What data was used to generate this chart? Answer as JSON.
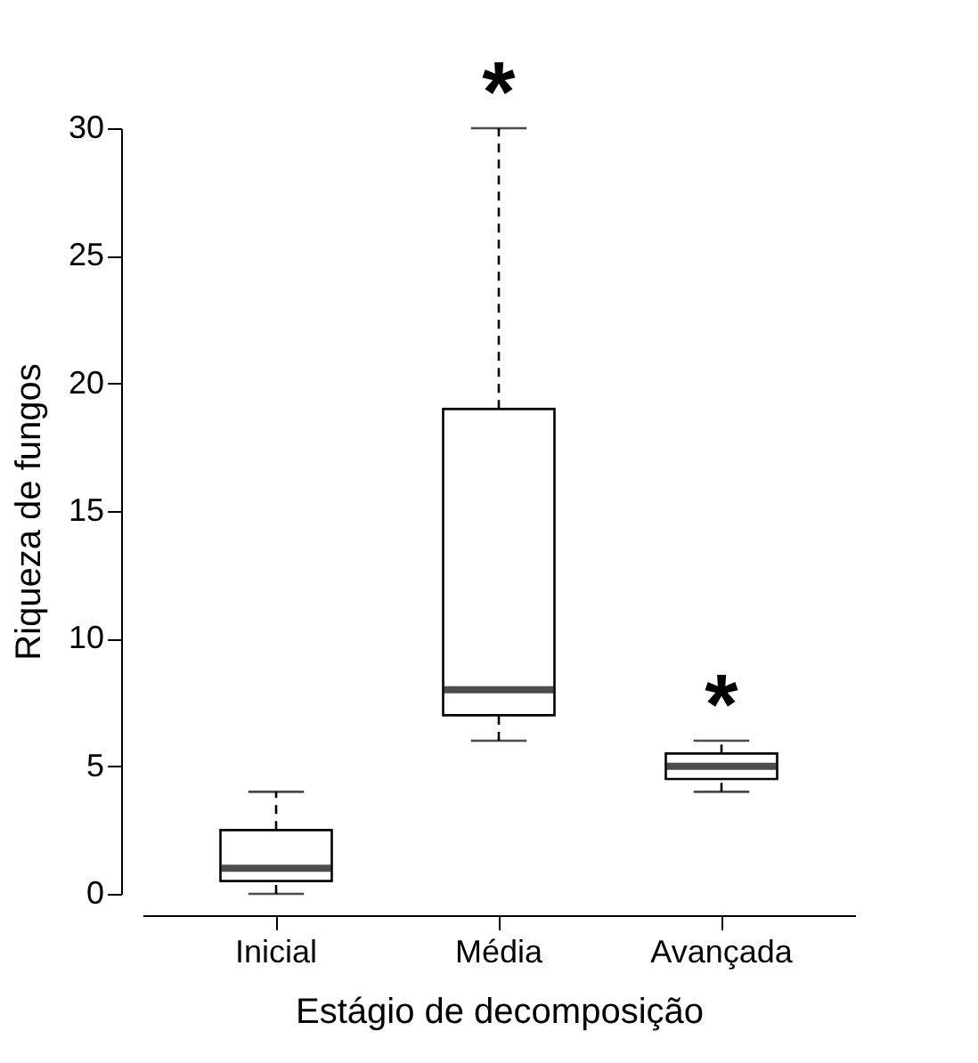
{
  "chart_data": {
    "type": "box",
    "xlabel": "Estágio de decomposição",
    "ylabel": "Riqueza de fungos",
    "categories": [
      "Inicial",
      "Média",
      "Avançada"
    ],
    "boxes": [
      {
        "low": 0,
        "q1": 0.5,
        "median": 1,
        "q3": 2.5,
        "high": 4
      },
      {
        "low": 6,
        "q1": 7,
        "median": 8,
        "q3": 19,
        "high": 30
      },
      {
        "low": 4,
        "q1": 4.5,
        "median": 5,
        "q3": 5.5,
        "high": 6
      }
    ],
    "ylim": [
      0,
      30
    ],
    "yticks": [
      0,
      5,
      10,
      15,
      20,
      25,
      30
    ],
    "grid": false,
    "line_style": "dashed",
    "annotations": [
      {
        "text": "*",
        "x": "Média",
        "y": 30
      },
      {
        "text": "*",
        "x": "Avançada",
        "y": 6
      }
    ]
  }
}
